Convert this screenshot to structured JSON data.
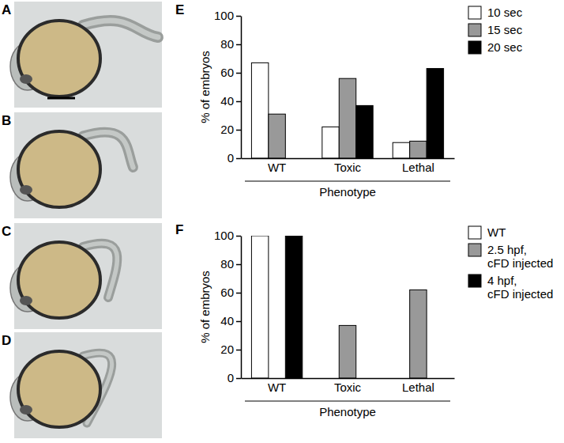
{
  "photos": {
    "labels": [
      "A",
      "B",
      "C",
      "D"
    ]
  },
  "chart_data": [
    {
      "type": "bar",
      "annotations": [
        "E"
      ],
      "categories": [
        "WT",
        "Toxic",
        "Lethal"
      ],
      "series": [
        {
          "name": "10 sec",
          "color": "#ffffff",
          "values": [
            67,
            22,
            11
          ]
        },
        {
          "name": "15 sec",
          "color": "#999999",
          "values": [
            31,
            56,
            12
          ]
        },
        {
          "name": "20 sec",
          "color": "#000000",
          "values": [
            0,
            37,
            63
          ]
        }
      ],
      "xlabel": "Phenotype",
      "ylabel": "% of embryos",
      "ylim": [
        0,
        100
      ],
      "yticks": [
        0,
        20,
        40,
        60,
        80,
        100
      ],
      "legend": "right"
    },
    {
      "type": "bar",
      "annotations": [
        "F"
      ],
      "categories": [
        "WT",
        "Toxic",
        "Lethal"
      ],
      "series": [
        {
          "name": "WT",
          "color": "#ffffff",
          "values": [
            100,
            0,
            0
          ]
        },
        {
          "name": "2.5 hpf, cFD injected",
          "color": "#999999",
          "values": [
            0,
            37,
            62
          ]
        },
        {
          "name": "4 hpf, cFD injected",
          "color": "#000000",
          "values": [
            100,
            0,
            0
          ]
        }
      ],
      "xlabel": "Phenotype",
      "ylabel": "% of embryos",
      "ylim": [
        0,
        100
      ],
      "yticks": [
        0,
        20,
        40,
        60,
        80,
        100
      ],
      "legend": "right"
    }
  ]
}
